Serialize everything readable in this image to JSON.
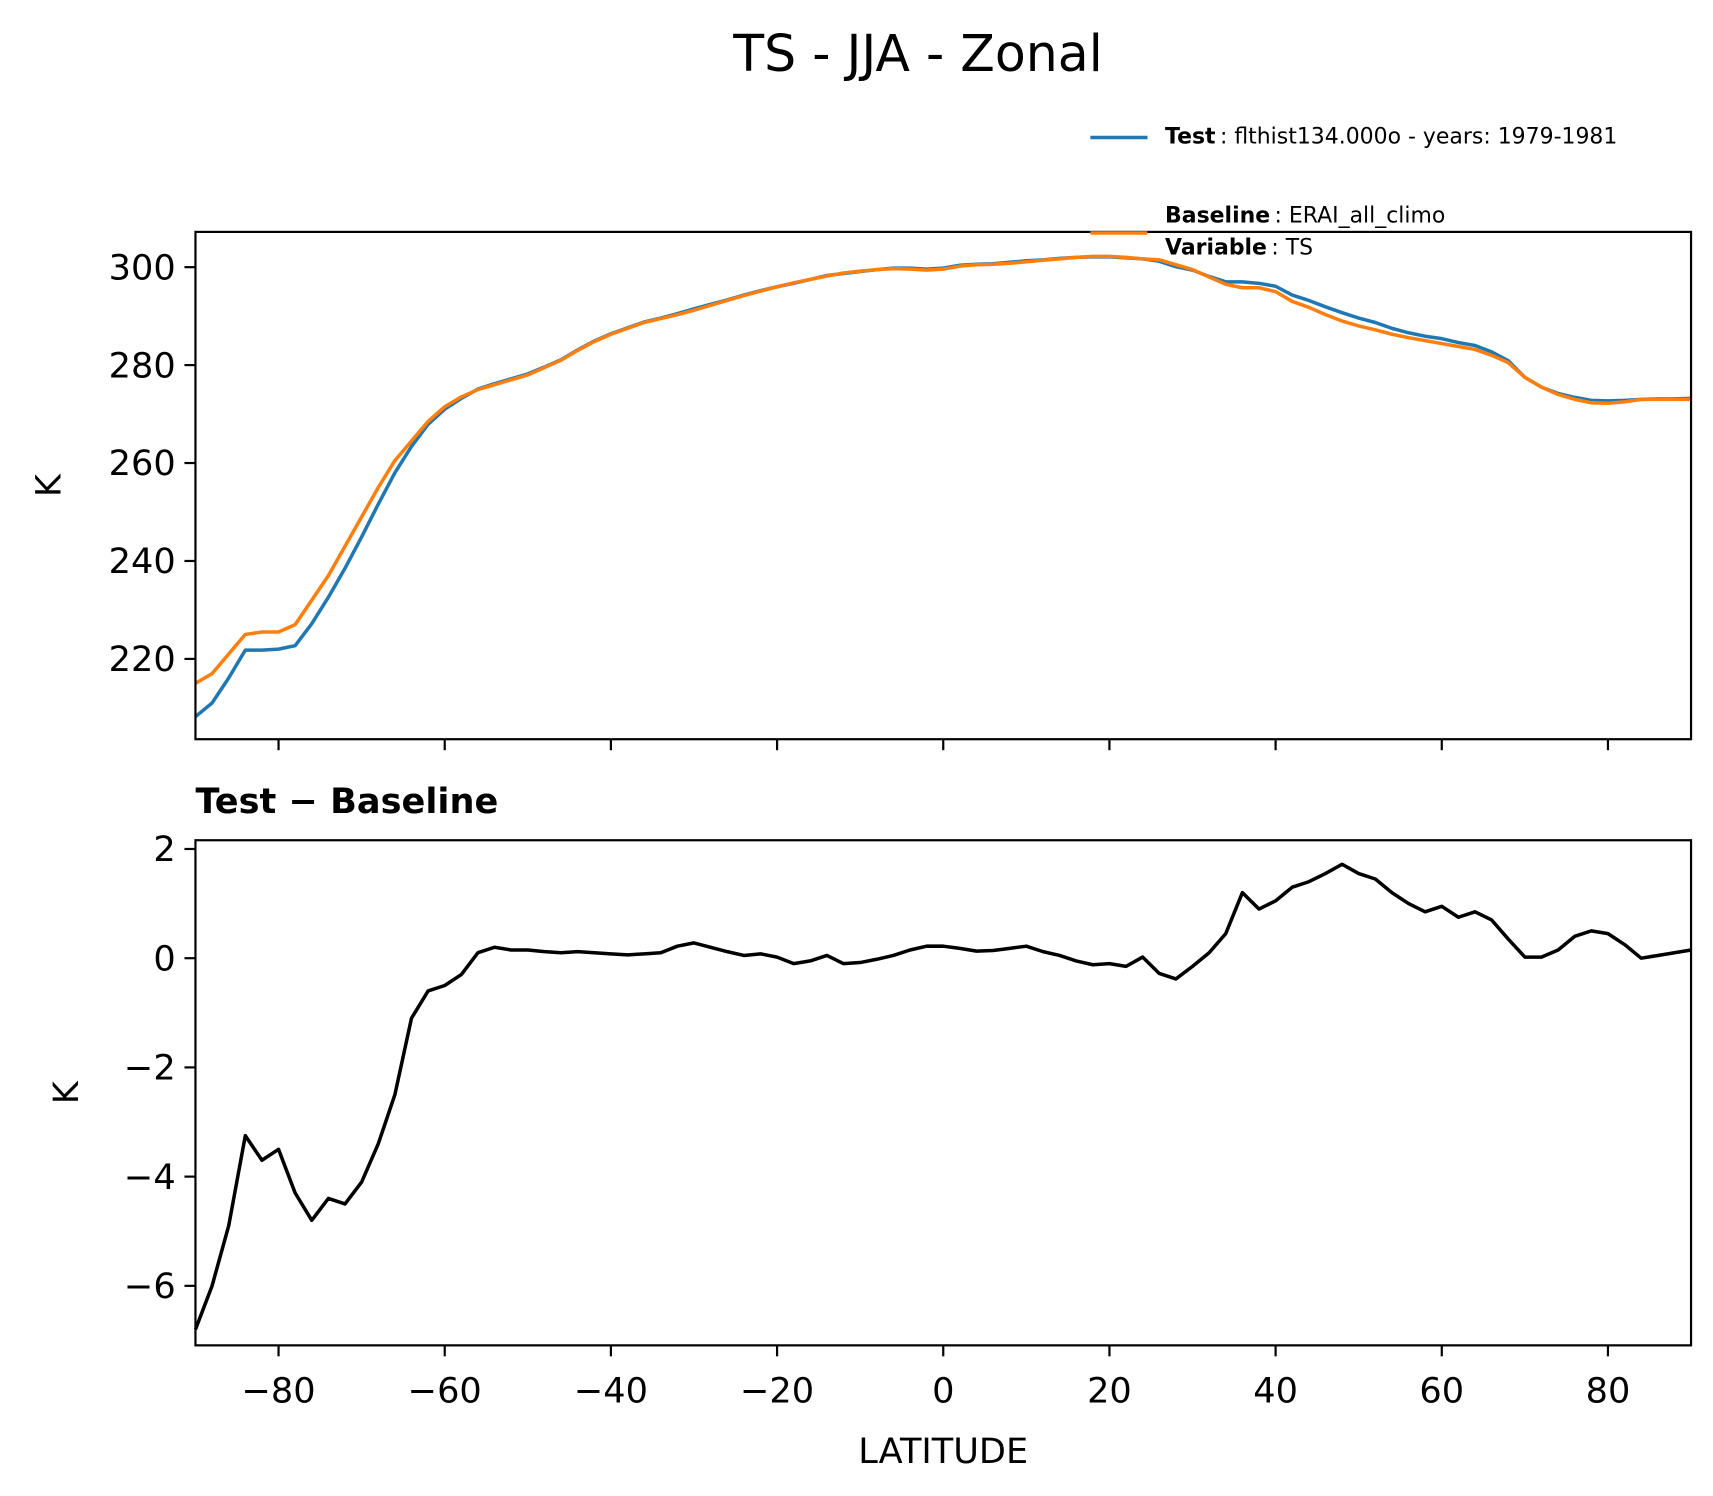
{
  "title": "TS - JJA - Zonal",
  "chart_data": [
    {
      "type": "line",
      "ylabel": "K",
      "xlim": [
        -90,
        90
      ],
      "ylim": [
        203.6,
        307.2
      ],
      "xticks": [
        -80,
        -60,
        -40,
        -20,
        0,
        20,
        40,
        60,
        80
      ],
      "yticks": [
        220,
        240,
        260,
        280,
        300
      ],
      "x": [
        -90,
        -88,
        -86,
        -84,
        -82,
        -80,
        -78,
        -76,
        -74,
        -72,
        -70,
        -68,
        -66,
        -64,
        -62,
        -60,
        -58,
        -56,
        -54,
        -52,
        -50,
        -48,
        -46,
        -44,
        -42,
        -40,
        -38,
        -36,
        -34,
        -32,
        -30,
        -28,
        -26,
        -24,
        -22,
        -20,
        -18,
        -16,
        -14,
        -12,
        -10,
        -8,
        -6,
        -4,
        -2,
        0,
        2,
        4,
        6,
        8,
        10,
        12,
        14,
        16,
        18,
        20,
        22,
        24,
        26,
        28,
        30,
        32,
        34,
        36,
        38,
        40,
        42,
        44,
        46,
        48,
        50,
        52,
        54,
        56,
        58,
        60,
        62,
        64,
        66,
        68,
        70,
        72,
        74,
        76,
        78,
        80,
        82,
        84,
        86,
        88,
        90
      ],
      "legend": "upper right",
      "series": [
        {
          "name": "Test",
          "label": ": flthist134.000o - years: 1979-1981",
          "color": "#1f77b4",
          "values": [
            208.2,
            211,
            216.1,
            221.8,
            221.8,
            222,
            222.7,
            227.2,
            232.6,
            238.5,
            244.9,
            251.6,
            258,
            263.4,
            267.9,
            271,
            273.2,
            275.1,
            276.2,
            277.2,
            278.2,
            279.6,
            281.1,
            283.1,
            284.9,
            286.4,
            287.6,
            288.8,
            289.6,
            290.5,
            291.5,
            292.4,
            293.3,
            294.3,
            295.2,
            296,
            296.7,
            297.5,
            298.3,
            298.7,
            299.1,
            299.5,
            299.8,
            299.8,
            299.6,
            299.8,
            300.4,
            300.6,
            300.7,
            301,
            301.3,
            301.5,
            301.8,
            302,
            302.1,
            302.1,
            301.9,
            301.7,
            301.2,
            300.1,
            299.4,
            298.1,
            297,
            297,
            296.7,
            296.1,
            294.3,
            293.2,
            291.9,
            290.7,
            289.6,
            288.7,
            287.5,
            286.6,
            285.9,
            285.4,
            284.6,
            284,
            282.7,
            280.9,
            277.5,
            275.5,
            274.2,
            273.4,
            272.8,
            272.7,
            272.8,
            273,
            273.1,
            273.1,
            273.2
          ]
        },
        {
          "name": "Baseline",
          "label": ": ERAI_all_climo",
          "extra_name": "Variable",
          "extra_label": ": TS",
          "color": "#ff7f0e",
          "values": [
            215,
            217,
            221,
            225,
            225.5,
            225.5,
            227,
            232,
            237,
            243,
            249,
            255,
            260.5,
            264.5,
            268.5,
            271.5,
            273.5,
            275,
            276,
            277,
            278,
            279.5,
            281,
            283,
            284.8,
            286.3,
            287.5,
            288.7,
            289.5,
            290.3,
            291.2,
            292.2,
            293.2,
            294.2,
            295.1,
            296,
            296.8,
            297.5,
            298.2,
            298.8,
            299.2,
            299.5,
            299.7,
            299.6,
            299.4,
            299.6,
            300.2,
            300.5,
            300.6,
            300.8,
            301.1,
            301.4,
            301.7,
            302,
            302.2,
            302.2,
            302,
            301.7,
            301.5,
            300.5,
            299.5,
            298,
            296.5,
            295.8,
            295.8,
            295,
            293,
            291.8,
            290.3,
            289,
            288,
            287.2,
            286.3,
            285.6,
            285,
            284.4,
            283.8,
            283.2,
            282,
            280.5,
            277.5,
            275.5,
            274,
            273,
            272.3,
            272.2,
            272.5,
            273,
            273,
            273,
            273
          ]
        }
      ]
    },
    {
      "type": "line",
      "title": "Test − Baseline",
      "xlabel": "LATITUDE",
      "ylabel": "K",
      "xlim": [
        -90,
        90
      ],
      "ylim": [
        -7.09,
        2.16
      ],
      "xticks": [
        {
          "value": -80,
          "label": "−80"
        },
        {
          "value": -60,
          "label": "−60"
        },
        {
          "value": -40,
          "label": "−40"
        },
        {
          "value": -20,
          "label": "−20"
        },
        0,
        20,
        40,
        60,
        80
      ],
      "yticks": [
        {
          "value": -6,
          "label": "−6"
        },
        {
          "value": -4,
          "label": "−4"
        },
        {
          "value": -2,
          "label": "−2"
        },
        0,
        2
      ],
      "x": [
        -90,
        -88,
        -86,
        -84,
        -82,
        -80,
        -78,
        -76,
        -74,
        -72,
        -70,
        -68,
        -66,
        -64,
        -62,
        -60,
        -58,
        -56,
        -54,
        -52,
        -50,
        -48,
        -46,
        -44,
        -42,
        -40,
        -38,
        -36,
        -34,
        -32,
        -30,
        -28,
        -26,
        -24,
        -22,
        -20,
        -18,
        -16,
        -14,
        -12,
        -10,
        -8,
        -6,
        -4,
        -2,
        0,
        2,
        4,
        6,
        8,
        10,
        12,
        14,
        16,
        18,
        20,
        22,
        24,
        26,
        28,
        30,
        32,
        34,
        36,
        38,
        40,
        42,
        44,
        46,
        48,
        50,
        52,
        54,
        56,
        58,
        60,
        62,
        64,
        66,
        68,
        70,
        72,
        74,
        76,
        78,
        80,
        82,
        84,
        86,
        88,
        90
      ],
      "series": [
        {
          "color": "#000000",
          "values": [
            -6.8,
            -6.0,
            -4.9,
            -3.25,
            -3.7,
            -3.5,
            -4.3,
            -4.8,
            -4.4,
            -4.5,
            -4.1,
            -3.4,
            -2.5,
            -1.1,
            -0.6,
            -0.5,
            -0.3,
            0.1,
            0.2,
            0.15,
            0.15,
            0.12,
            0.1,
            0.12,
            0.1,
            0.08,
            0.06,
            0.08,
            0.1,
            0.22,
            0.28,
            0.2,
            0.12,
            0.05,
            0.08,
            0.02,
            -0.1,
            -0.05,
            0.05,
            -0.1,
            -0.08,
            -0.02,
            0.05,
            0.15,
            0.22,
            0.22,
            0.18,
            0.13,
            0.14,
            0.18,
            0.22,
            0.12,
            0.05,
            -0.05,
            -0.12,
            -0.1,
            -0.15,
            0.02,
            -0.28,
            -0.38,
            -0.15,
            0.1,
            0.45,
            1.2,
            0.9,
            1.05,
            1.3,
            1.4,
            1.55,
            1.72,
            1.55,
            1.45,
            1.2,
            1.0,
            0.85,
            0.95,
            0.75,
            0.85,
            0.7,
            0.35,
            0.02,
            0.02,
            0.15,
            0.4,
            0.5,
            0.45,
            0.25,
            0.0,
            0.05,
            0.1,
            0.15
          ]
        }
      ]
    }
  ]
}
